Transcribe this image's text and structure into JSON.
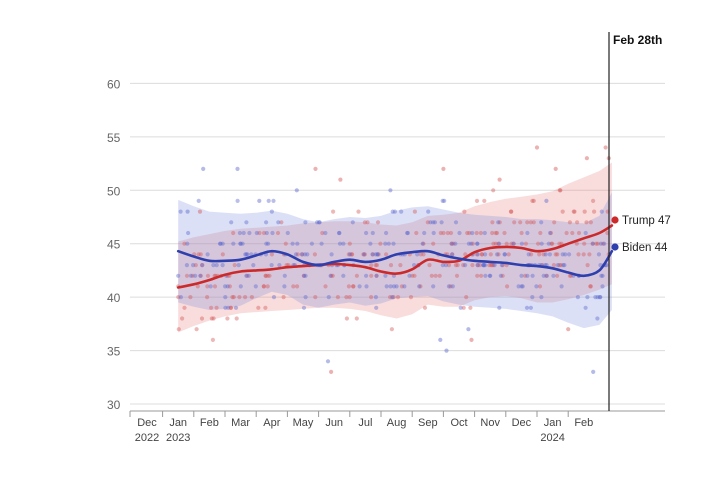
{
  "chart_data": {
    "type": "line",
    "title": "",
    "xlabel": "",
    "ylabel": "",
    "ylim": [
      30,
      62
    ],
    "yticks": [
      60,
      55,
      50,
      45,
      40,
      35,
      30
    ],
    "grid": true,
    "x_months": [
      {
        "label": "Dec",
        "year": "2022"
      },
      {
        "label": "Jan",
        "year": "2023"
      },
      {
        "label": "Feb",
        "year": ""
      },
      {
        "label": "Mar",
        "year": ""
      },
      {
        "label": "Apr",
        "year": ""
      },
      {
        "label": "May",
        "year": ""
      },
      {
        "label": "Jun",
        "year": ""
      },
      {
        "label": "Jul",
        "year": ""
      },
      {
        "label": "Aug",
        "year": ""
      },
      {
        "label": "Sep",
        "year": ""
      },
      {
        "label": "Oct",
        "year": ""
      },
      {
        "label": "Nov",
        "year": ""
      },
      {
        "label": "Dec",
        "year": ""
      },
      {
        "label": "Jan",
        "year": "2024"
      },
      {
        "label": "Feb",
        "year": ""
      }
    ],
    "marker": {
      "label": "Feb 28th",
      "month_index": 14.9
    },
    "series": [
      {
        "name": "Trump",
        "end_label": "Trump 47",
        "color": "#cc2a2a",
        "band_color": "#e88080",
        "x": [
          1,
          1.5,
          2,
          2.5,
          3,
          3.5,
          4,
          4.5,
          5,
          5.5,
          6,
          6.5,
          7,
          7.5,
          8,
          8.5,
          9,
          9.5,
          10,
          10.5,
          11,
          11.5,
          12,
          12.5,
          13,
          13.5,
          14,
          14.5,
          14.9
        ],
        "values": [
          40.9,
          41.2,
          41.6,
          42.1,
          42.4,
          42.5,
          42.6,
          42.8,
          42.9,
          43.0,
          43.1,
          43.0,
          42.8,
          42.4,
          42.2,
          42.6,
          43.5,
          43.3,
          43.4,
          44.2,
          44.6,
          44.7,
          44.6,
          44.3,
          44.5,
          45.0,
          45.5,
          46.0,
          46.7
        ],
        "upper": [
          45.2,
          45.6,
          45.9,
          46.2,
          46.4,
          46.5,
          46.6,
          46.7,
          46.9,
          47.0,
          47.1,
          47.1,
          47.0,
          46.8,
          46.7,
          47.0,
          47.6,
          47.7,
          47.9,
          48.5,
          48.9,
          49.2,
          49.4,
          49.6,
          49.9,
          50.6,
          51.2,
          51.8,
          52.6
        ],
        "lower": [
          36.7,
          37.3,
          37.8,
          38.2,
          38.5,
          38.6,
          38.7,
          38.8,
          38.9,
          39.0,
          39.0,
          38.9,
          38.7,
          38.3,
          38.0,
          38.4,
          39.3,
          39.1,
          39.1,
          39.7,
          40.0,
          40.1,
          39.9,
          39.5,
          39.5,
          39.8,
          40.2,
          40.7,
          41.2
        ]
      },
      {
        "name": "Biden",
        "end_label": "Biden 44",
        "color": "#2e3fae",
        "band_color": "#7d8fe0",
        "x": [
          1,
          1.5,
          2,
          2.5,
          3,
          3.5,
          4,
          4.5,
          5,
          5.5,
          6,
          6.5,
          7,
          7.5,
          8,
          8.5,
          9,
          9.5,
          10,
          10.5,
          11,
          11.5,
          12,
          12.5,
          13,
          13.5,
          14,
          14.5,
          14.9
        ],
        "values": [
          44.3,
          43.8,
          43.4,
          43.4,
          43.5,
          43.9,
          44.3,
          44.0,
          43.3,
          43.0,
          43.3,
          43.5,
          43.3,
          43.5,
          44.0,
          44.2,
          44.3,
          43.9,
          43.6,
          43.4,
          43.3,
          43.2,
          43.0,
          42.9,
          42.7,
          42.3,
          42.0,
          42.5,
          44.3
        ],
        "upper": [
          49.1,
          48.5,
          48.0,
          47.9,
          47.8,
          47.9,
          48.1,
          47.8,
          47.3,
          47.0,
          47.3,
          47.5,
          47.4,
          47.6,
          48.1,
          48.4,
          48.5,
          48.2,
          47.9,
          47.7,
          47.6,
          47.5,
          47.3,
          47.3,
          47.2,
          47.0,
          46.9,
          47.6,
          49.8
        ],
        "lower": [
          39.5,
          39.1,
          38.8,
          38.9,
          39.2,
          39.9,
          40.5,
          40.2,
          39.3,
          39.0,
          39.3,
          39.5,
          39.2,
          39.4,
          39.9,
          40.0,
          40.1,
          39.6,
          39.3,
          39.1,
          39.0,
          38.9,
          38.7,
          38.5,
          38.2,
          37.6,
          37.1,
          37.4,
          38.8
        ]
      }
    ],
    "outlier_points": [
      {
        "series": "Trump",
        "x": 1.7,
        "y": 48
      },
      {
        "series": "Trump",
        "x": 5.4,
        "y": 52
      },
      {
        "series": "Trump",
        "x": 5.9,
        "y": 33
      },
      {
        "series": "Trump",
        "x": 6.2,
        "y": 51
      },
      {
        "series": "Trump",
        "x": 9.5,
        "y": 52
      },
      {
        "series": "Trump",
        "x": 11.3,
        "y": 51
      },
      {
        "series": "Trump",
        "x": 12.5,
        "y": 54
      },
      {
        "series": "Trump",
        "x": 13.1,
        "y": 52
      },
      {
        "series": "Trump",
        "x": 14.1,
        "y": 53
      },
      {
        "series": "Trump",
        "x": 14.7,
        "y": 54
      },
      {
        "series": "Trump",
        "x": 14.8,
        "y": 53
      },
      {
        "series": "Trump",
        "x": 13.5,
        "y": 37
      },
      {
        "series": "Trump",
        "x": 10.4,
        "y": 36
      },
      {
        "series": "Biden",
        "x": 1.3,
        "y": 48
      },
      {
        "series": "Biden",
        "x": 1.8,
        "y": 52
      },
      {
        "series": "Biden",
        "x": 2.9,
        "y": 52
      },
      {
        "series": "Biden",
        "x": 3.6,
        "y": 49
      },
      {
        "series": "Biden",
        "x": 5.8,
        "y": 34
      },
      {
        "series": "Biden",
        "x": 9.4,
        "y": 36
      },
      {
        "series": "Biden",
        "x": 9.6,
        "y": 35
      },
      {
        "series": "Biden",
        "x": 10.3,
        "y": 37
      },
      {
        "series": "Biden",
        "x": 14.3,
        "y": 33
      },
      {
        "series": "Biden",
        "x": 12.8,
        "y": 49
      },
      {
        "series": "Biden",
        "x": 4.8,
        "y": 50
      },
      {
        "series": "Biden",
        "x": 7.8,
        "y": 50
      }
    ]
  }
}
